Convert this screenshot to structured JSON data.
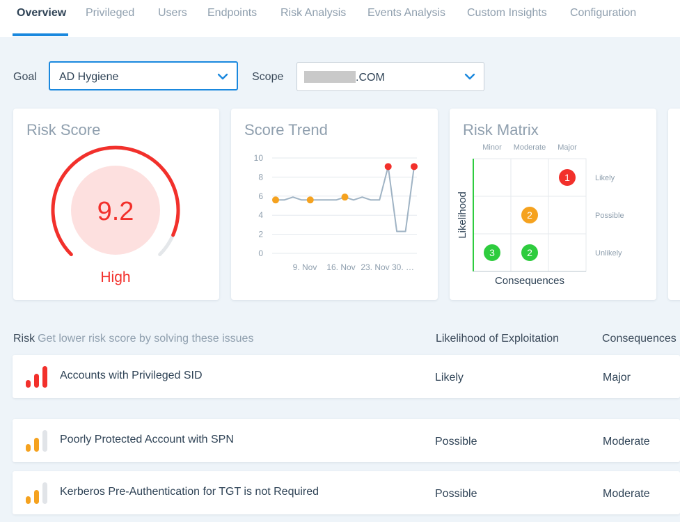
{
  "tabs": [
    {
      "label": "Overview",
      "active": true
    },
    {
      "label": "Privileged"
    },
    {
      "label": "Users"
    },
    {
      "label": "Endpoints"
    },
    {
      "label": "Risk Analysis"
    },
    {
      "label": "Events Analysis"
    },
    {
      "label": "Custom Insights"
    },
    {
      "label": "Configuration"
    }
  ],
  "filters": {
    "goal_label": "Goal",
    "goal_value": "AD Hygiene",
    "scope_label": "Scope",
    "scope_value_suffix": ".COM"
  },
  "risk_score": {
    "title": "Risk Score",
    "score": "9.2",
    "level": "High",
    "score_value": 9.2,
    "max": 10,
    "color": "#f2302b"
  },
  "score_trend": {
    "title": "Score Trend",
    "chart_data": {
      "type": "line",
      "y_ticks": [
        "10",
        "8",
        "6",
        "4",
        "2",
        "0"
      ],
      "ylim": [
        0,
        10
      ],
      "x_tick_labels": [
        "9. Nov",
        "16. Nov",
        "23. Nov",
        "30. …"
      ],
      "line_values": [
        5.6,
        5.6,
        5.9,
        5.6,
        5.6,
        5.6,
        5.6,
        5.6,
        5.9,
        5.6,
        5.9,
        5.6,
        5.6,
        9.1,
        2.3,
        2.3,
        9.1
      ],
      "markers": [
        {
          "index": 0,
          "value": 5.6,
          "color": "#f5a21f"
        },
        {
          "index": 4,
          "value": 5.6,
          "color": "#f5a21f"
        },
        {
          "index": 8,
          "value": 5.9,
          "color": "#f5a21f"
        },
        {
          "index": 13,
          "value": 9.1,
          "color": "#f2302b"
        },
        {
          "index": 16,
          "value": 9.1,
          "color": "#f2302b"
        }
      ]
    }
  },
  "risk_matrix": {
    "title": "Risk Matrix",
    "col_labels": [
      "Minor",
      "Moderate",
      "Major"
    ],
    "row_labels": [
      "Likely",
      "Possible",
      "Unlikely"
    ],
    "y_axis_label": "Likelihood",
    "x_axis_label": "Consequences",
    "bubbles": [
      {
        "row": 0,
        "col": 2,
        "count": "1",
        "color": "#f2302b"
      },
      {
        "row": 1,
        "col": 1,
        "count": "2",
        "color": "#f5a21f"
      },
      {
        "row": 2,
        "col": 0,
        "count": "3",
        "color": "#2ecc3e"
      },
      {
        "row": 2,
        "col": 1,
        "count": "2",
        "color": "#2ecc3e"
      }
    ]
  },
  "risks": {
    "header_label": "Risk",
    "header_sub": "Get lower risk score by solving these issues",
    "col_likelihood": "Likelihood of Exploitation",
    "col_consequences": "Consequences",
    "rows": [
      {
        "name": "Accounts with Privileged SID",
        "likelihood": "Likely",
        "consequences": "Major",
        "severity_bars": 3,
        "color": "#f2302b"
      },
      {
        "name": "Poorly Protected Account with SPN",
        "likelihood": "Possible",
        "consequences": "Moderate",
        "severity_bars": 2,
        "color": "#f5a21f"
      },
      {
        "name": "Kerberos Pre-Authentication for TGT is not Required",
        "likelihood": "Possible",
        "consequences": "Moderate",
        "severity_bars": 2,
        "color": "#f5a21f"
      }
    ]
  }
}
